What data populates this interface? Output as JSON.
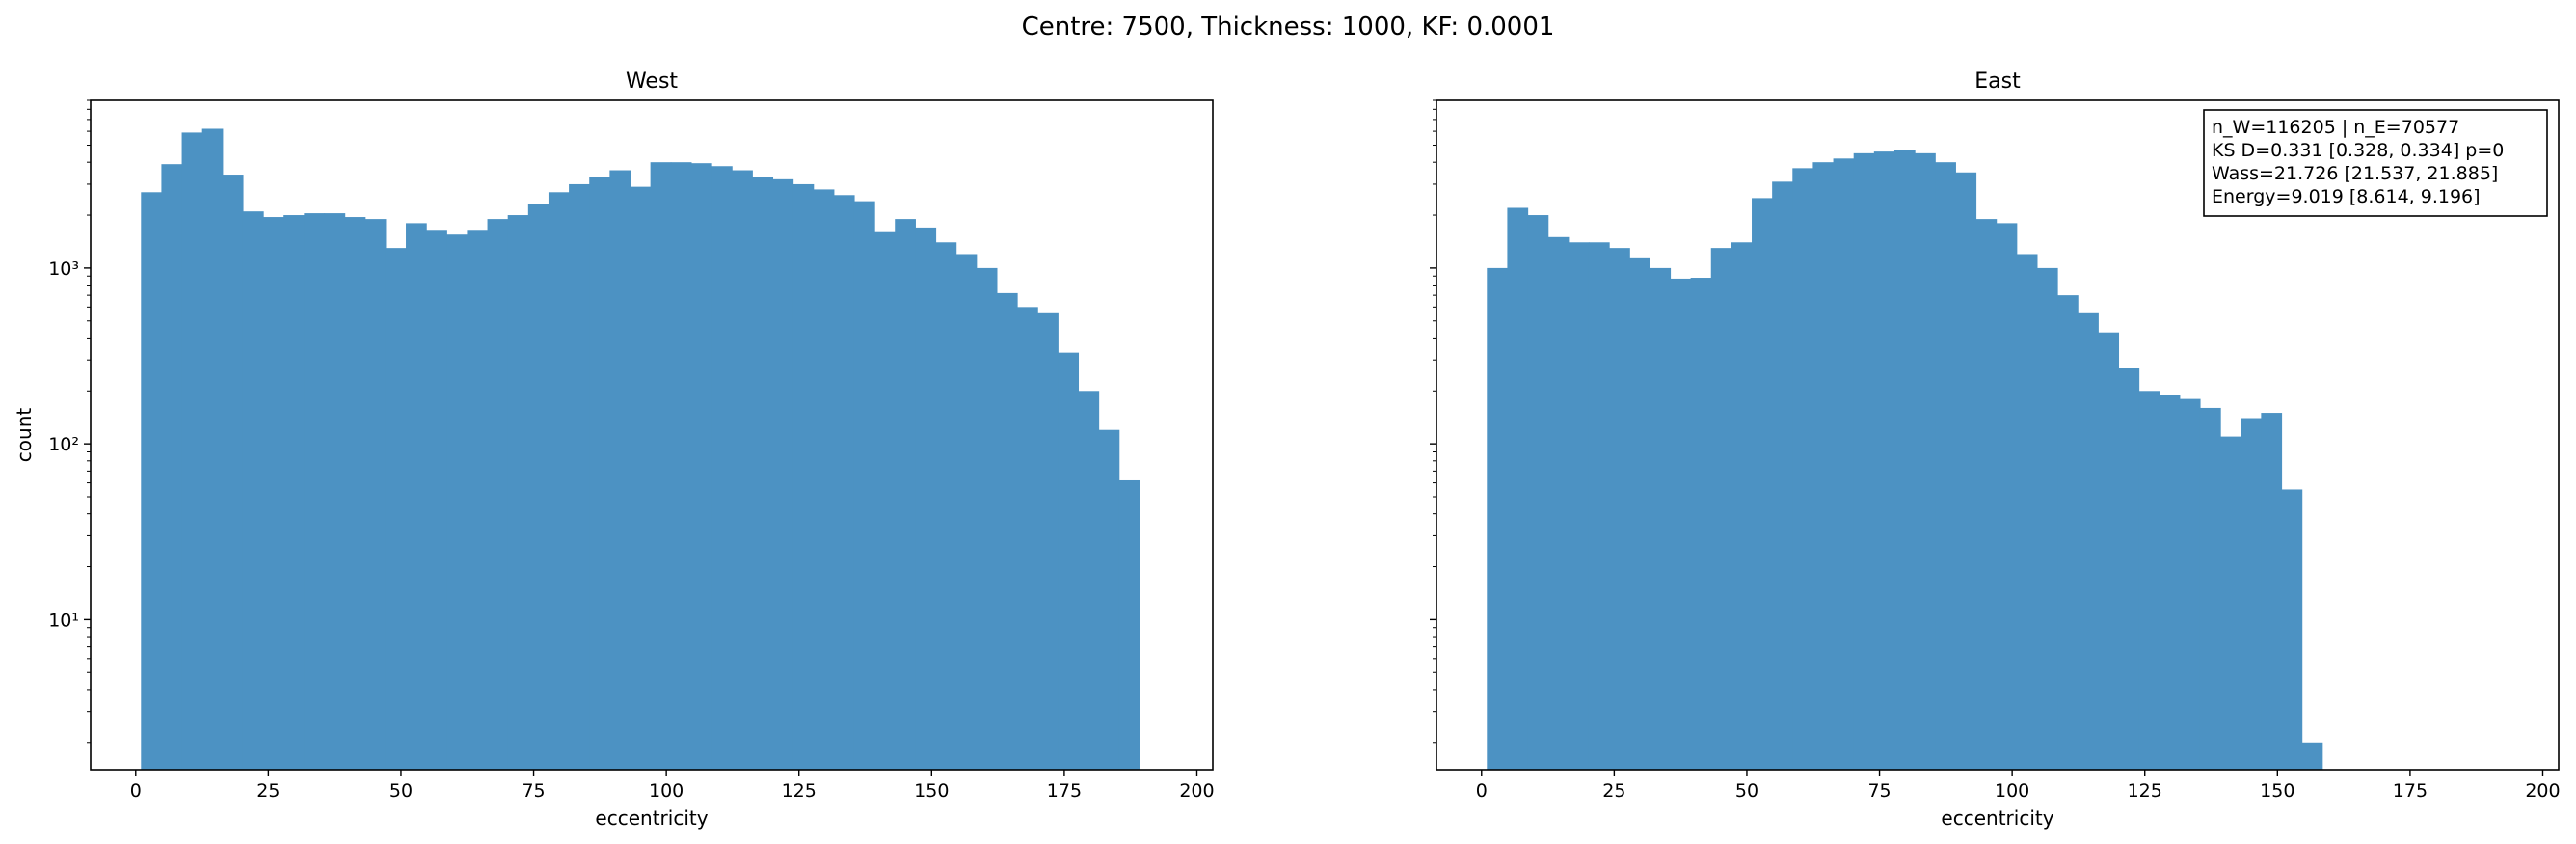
{
  "figure": {
    "suptitle": "Centre: 7500, Thickness: 1000, KF: 0.0001"
  },
  "chart_data": [
    {
      "type": "bar",
      "title": "West",
      "xlabel": "eccentricity",
      "ylabel": "count",
      "yscale": "log",
      "xlim": [
        -8.5,
        203
      ],
      "ylim": [
        1.4,
        9000
      ],
      "xticks": [
        0,
        25,
        50,
        75,
        100,
        125,
        150,
        175,
        200
      ],
      "yticks": [
        {
          "value": 10,
          "label": "10¹"
        },
        {
          "value": 100,
          "label": "10²"
        },
        {
          "value": 1000,
          "label": "10³"
        }
      ],
      "color": "#4c92c3",
      "bin_start": 1.0,
      "bin_width": 3.84,
      "counts": [
        2700,
        3900,
        5900,
        6200,
        3400,
        2100,
        1950,
        2000,
        2050,
        2050,
        1950,
        1900,
        1300,
        1800,
        1650,
        1550,
        1650,
        1900,
        2000,
        2300,
        2700,
        3000,
        3300,
        3600,
        2900,
        4000,
        4000,
        3950,
        3800,
        3600,
        3300,
        3200,
        3000,
        2800,
        2600,
        2400,
        1600,
        1900,
        1700,
        1400,
        1200,
        1000,
        720,
        600,
        560,
        330,
        200,
        120,
        62
      ],
      "grid": false,
      "legend": "none"
    },
    {
      "type": "bar",
      "title": "East",
      "xlabel": "eccentricity",
      "ylabel": "",
      "yscale": "log",
      "xlim": [
        -8.5,
        203
      ],
      "ylim": [
        1.4,
        9000
      ],
      "xticks": [
        0,
        25,
        50,
        75,
        100,
        125,
        150,
        175,
        200
      ],
      "yticks": [],
      "color": "#4c92c3",
      "bin_start": 1.0,
      "bin_width": 3.84,
      "counts": [
        1000,
        2200,
        2000,
        1500,
        1400,
        1400,
        1300,
        1150,
        1000,
        870,
        880,
        1300,
        1400,
        2500,
        3100,
        3700,
        4000,
        4200,
        4500,
        4600,
        4700,
        4500,
        4000,
        3500,
        1900,
        1800,
        1200,
        1000,
        700,
        560,
        430,
        270,
        200,
        190,
        180,
        160,
        110,
        140,
        150,
        55,
        2
      ],
      "annotation": [
        "n_W=116205 | n_E=70577",
        "KS D=0.331 [0.328, 0.334]  p=0",
        "Wass=21.726 [21.537, 21.885]",
        "Energy=9.019 [8.614, 9.196]"
      ],
      "grid": false,
      "legend": "none"
    }
  ]
}
